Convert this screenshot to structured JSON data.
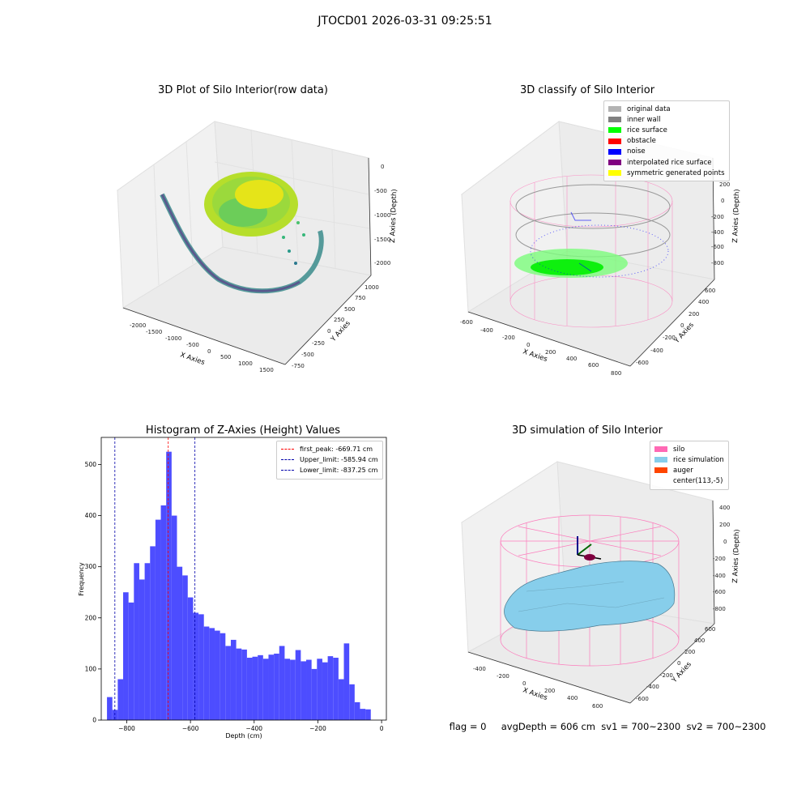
{
  "suptitle": "JTOCD01 2026-03-31 09:25:51",
  "status_line": "flag = 0     avgDepth = 606 cm  sv1 = 700~2300  sv2 = 700~2300",
  "panels": {
    "raw": {
      "title": "3D Plot of Silo Interior(row data)",
      "xlabel": "X Axies",
      "ylabel": "Y Axies",
      "zlabel": "Z Axies (Depth)",
      "xticks": [
        "-2000",
        "-1500",
        "-1000",
        "-500",
        "0",
        "500",
        "1000",
        "1500"
      ],
      "yticks": [
        "-750",
        "-500",
        "-250",
        "0",
        "250",
        "500",
        "750",
        "1000"
      ],
      "zticks": [
        "0",
        "-500",
        "-1000",
        "-1500",
        "-2000"
      ]
    },
    "classify": {
      "title": "3D classify of Silo Interior",
      "xlabel": "X Axies",
      "ylabel": "Y Axies",
      "zlabel": "Z Axies (Depth)",
      "xticks": [
        "-600",
        "-400",
        "-200",
        "0",
        "200",
        "400",
        "600",
        "800"
      ],
      "yticks": [
        "-600",
        "-400",
        "-200",
        "0",
        "200",
        "400",
        "600"
      ],
      "zticks": [
        "200",
        "0",
        "-200",
        "-400",
        "-600",
        "-800"
      ],
      "legend": [
        {
          "label": "original data",
          "color": "#b3b3b3"
        },
        {
          "label": "inner wall",
          "color": "#808080"
        },
        {
          "label": "rice surface",
          "color": "#00ff00"
        },
        {
          "label": "obstacle",
          "color": "#ff0000"
        },
        {
          "label": "noise",
          "color": "#0000ff"
        },
        {
          "label": "interpolated rice surface",
          "color": "#800080"
        },
        {
          "label": "symmetric generated points",
          "color": "#ffff00"
        }
      ]
    },
    "simulation": {
      "title": "3D simulation of Silo Interior",
      "xlabel": "X Axies",
      "ylabel": "Y Axies",
      "zlabel": "Z Axies (Depth)",
      "xticks": [
        "-400",
        "-200",
        "0",
        "200",
        "400",
        "600"
      ],
      "yticks": [
        "-600",
        "-400",
        "-200",
        "0",
        "200",
        "400",
        "600"
      ],
      "zticks": [
        "400",
        "200",
        "0",
        "-200",
        "-400",
        "-600",
        "-800"
      ],
      "legend": [
        {
          "label": "silo",
          "color": "#ff69b4"
        },
        {
          "label": "rice simulation",
          "color": "#87ceeb"
        },
        {
          "label": "auger",
          "color": "#ff4500"
        },
        {
          "label": "center(113,-5)",
          "color": ""
        }
      ]
    }
  },
  "chart_data": {
    "type": "bar",
    "title": "Histogram of Z-Axies (Height) Values",
    "xlabel": "Depth (cm)",
    "ylabel": "Frequency",
    "xlim": [
      -880,
      15
    ],
    "ylim": [
      0,
      553
    ],
    "bin_start": -862,
    "bin_width": 16.9,
    "values": [
      45,
      20,
      80,
      250,
      230,
      307,
      275,
      307,
      340,
      392,
      420,
      525,
      400,
      300,
      283,
      240,
      210,
      207,
      183,
      180,
      175,
      170,
      145,
      157,
      140,
      138,
      122,
      124,
      127,
      120,
      128,
      130,
      145,
      120,
      118,
      137,
      115,
      118,
      100,
      120,
      113,
      125,
      122,
      80,
      150,
      70,
      35,
      22,
      21
    ],
    "xticks": [
      -800,
      -600,
      -400,
      -200,
      0
    ],
    "yticks": [
      0,
      100,
      200,
      300,
      400,
      500
    ],
    "bar_color": "#4d4dff",
    "vlines": [
      {
        "label": "first_peak: -669.71 cm",
        "x": -669.71,
        "color": "#ff0000"
      },
      {
        "label": "Upper_limit: -585.94 cm",
        "x": -585.94,
        "color": "#0000aa"
      },
      {
        "label": "Lower_limit: -837.25 cm",
        "x": -837.25,
        "color": "#0000aa"
      }
    ]
  }
}
